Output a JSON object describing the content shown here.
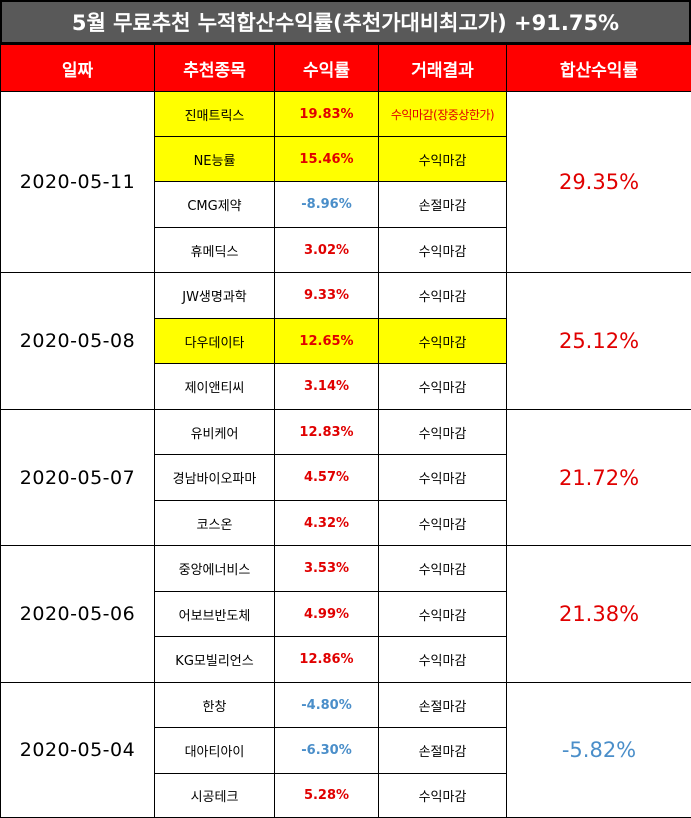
{
  "title": "5월 무료추천 누적합산수익률(추천가대비최고가) +91.75%",
  "headers": [
    "일짜",
    "추천종목",
    "수익률",
    "거래결과",
    "합산수익률"
  ],
  "groups": [
    {
      "date": "2020-05-11",
      "sum": "29.35%",
      "sum_sign": "pos",
      "rows": [
        {
          "name": "진매트릭스",
          "ret": "19.83%",
          "sign": "pos",
          "result": "수익마감(장중상한가)",
          "highlight": true,
          "special": true
        },
        {
          "name": "NE능률",
          "ret": "15.46%",
          "sign": "pos",
          "result": "수익마감",
          "highlight": true
        },
        {
          "name": "CMG제약",
          "ret": "-8.96%",
          "sign": "neg",
          "result": "손절마감",
          "highlight": false
        },
        {
          "name": "휴메딕스",
          "ret": "3.02%",
          "sign": "pos",
          "result": "수익마감",
          "highlight": false
        }
      ]
    },
    {
      "date": "2020-05-08",
      "sum": "25.12%",
      "sum_sign": "pos",
      "rows": [
        {
          "name": "JW생명과학",
          "ret": "9.33%",
          "sign": "pos",
          "result": "수익마감",
          "highlight": false
        },
        {
          "name": "다우데이타",
          "ret": "12.65%",
          "sign": "pos",
          "result": "수익마감",
          "highlight": true
        },
        {
          "name": "제이앤티씨",
          "ret": "3.14%",
          "sign": "pos",
          "result": "수익마감",
          "highlight": false
        }
      ]
    },
    {
      "date": "2020-05-07",
      "sum": "21.72%",
      "sum_sign": "pos",
      "rows": [
        {
          "name": "유비케어",
          "ret": "12.83%",
          "sign": "pos",
          "result": "수익마감",
          "highlight": false
        },
        {
          "name": "경남바이오파마",
          "ret": "4.57%",
          "sign": "pos",
          "result": "수익마감",
          "highlight": false
        },
        {
          "name": "코스온",
          "ret": "4.32%",
          "sign": "pos",
          "result": "수익마감",
          "highlight": false
        }
      ]
    },
    {
      "date": "2020-05-06",
      "sum": "21.38%",
      "sum_sign": "pos",
      "rows": [
        {
          "name": "중앙에너비스",
          "ret": "3.53%",
          "sign": "pos",
          "result": "수익마감",
          "highlight": false
        },
        {
          "name": "어보브반도체",
          "ret": "4.99%",
          "sign": "pos",
          "result": "수익마감",
          "highlight": false
        },
        {
          "name": "KG모빌리언스",
          "ret": "12.86%",
          "sign": "pos",
          "result": "수익마감",
          "highlight": false
        }
      ]
    },
    {
      "date": "2020-05-04",
      "sum": "-5.82%",
      "sum_sign": "neg",
      "rows": [
        {
          "name": "한창",
          "ret": "-4.80%",
          "sign": "neg",
          "result": "손절마감",
          "highlight": false
        },
        {
          "name": "대아티아이",
          "ret": "-6.30%",
          "sign": "neg",
          "result": "손절마감",
          "highlight": false
        },
        {
          "name": "시공테크",
          "ret": "5.28%",
          "sign": "pos",
          "result": "수익마감",
          "highlight": false
        }
      ]
    }
  ],
  "colors": {
    "header_bg": "#ff0000",
    "title_bg": "#595959",
    "highlight": "#ffff00",
    "positive": "#e00000",
    "negative": "#4a8ec9"
  }
}
